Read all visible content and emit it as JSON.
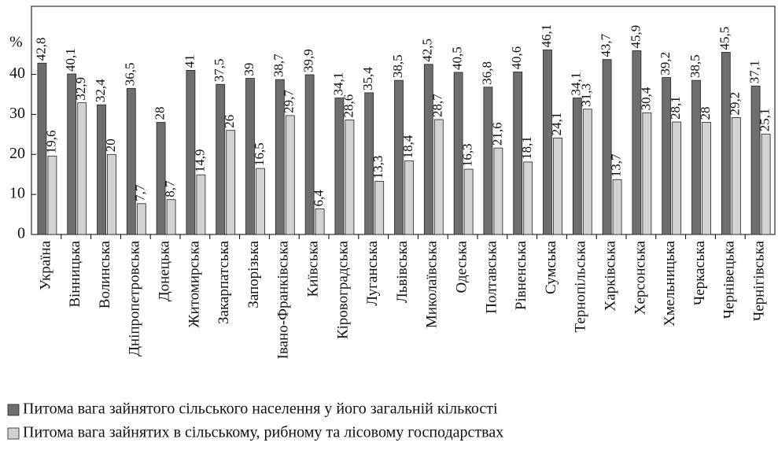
{
  "chart_data": {
    "type": "bar",
    "y_label": "%",
    "categories": [
      "Україна",
      "Вінницька",
      "Волинська",
      "Дніпропетровська",
      "Донецька",
      "Житомирська",
      "Закарпатська",
      "Запорізька",
      "Івано-Франківська",
      "Київська",
      "Кіровоградська",
      "Луганська",
      "Львівська",
      "Миколаївська",
      "Одеська",
      "Полтавська",
      "Рівненська",
      "Сумська",
      "Тернопільська",
      "Харківська",
      "Херсонська",
      "Хмельницька",
      "Черкаська",
      "Чернівецька",
      "Чернігівська"
    ],
    "series": [
      {
        "name": "Питома вага зайнятого сільського населення у його загальній кількості",
        "color": "#6e6e6e",
        "values": [
          42.8,
          40.1,
          32.4,
          36.5,
          28,
          41,
          37.5,
          39,
          38.7,
          39.9,
          34.1,
          35.4,
          38.5,
          42.5,
          40.5,
          36.8,
          40.6,
          46.1,
          34.1,
          43.7,
          45.9,
          39.2,
          38.5,
          45.5,
          37.1
        ],
        "value_labels": [
          "42,8",
          "40,1",
          "32,4",
          "36,5",
          "28",
          "41",
          "37,5",
          "39",
          "38,7",
          "39,9",
          "34,1",
          "35,4",
          "38,5",
          "42,5",
          "40,5",
          "36,8",
          "40,6",
          "46,1",
          "34,1",
          "43,7",
          "45,9",
          "39,2",
          "38,5",
          "45,5",
          "37,1"
        ]
      },
      {
        "name": "Питома вага зайнятих в сільському, рибному та лісовому господарствах",
        "color": "#d2d2d2",
        "values": [
          19.6,
          32.9,
          20,
          7.7,
          8.7,
          14.9,
          26,
          16.5,
          29.7,
          6.4,
          28.6,
          13.3,
          18.4,
          28.7,
          16.3,
          21.6,
          18.1,
          24.1,
          31.3,
          13.7,
          30.4,
          28.1,
          28,
          29.2,
          25.1
        ],
        "value_labels": [
          "19,6",
          "32,9",
          "20",
          "7,7",
          "8,7",
          "14,9",
          "26",
          "16,5",
          "29,7",
          "6,4",
          "28,6",
          "13,3",
          "18,4",
          "28,7",
          "16,3",
          "21,6",
          "18,1",
          "24,1",
          "31,3",
          "13,7",
          "30,4",
          "28,1",
          "28",
          "29,2",
          "25,1"
        ]
      }
    ],
    "ylim": [
      0,
      57
    ],
    "yticks": [
      0,
      10,
      20,
      30,
      40
    ]
  }
}
